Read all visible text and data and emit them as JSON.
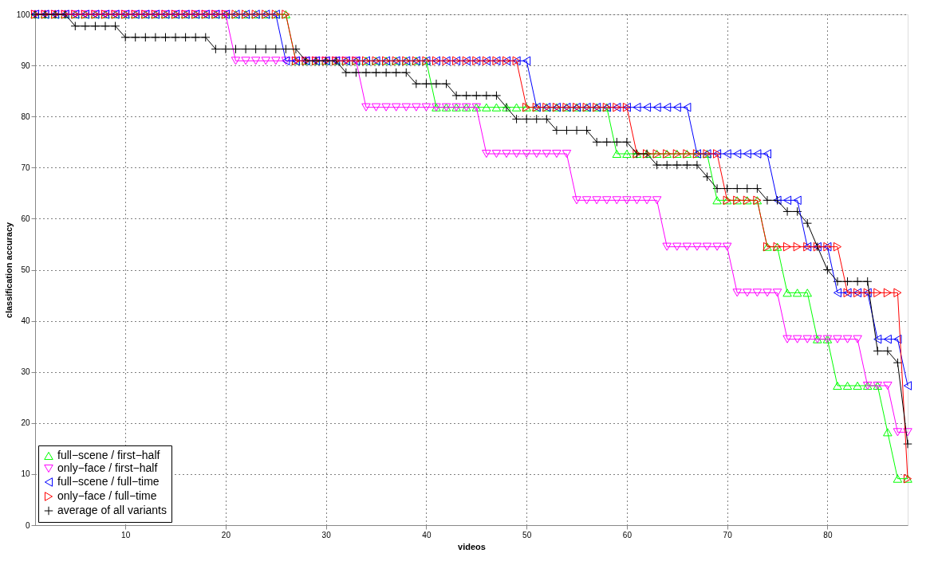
{
  "chart_data": {
    "type": "line",
    "xlabel": "videos",
    "ylabel": "classification accuracy",
    "x": [
      1,
      2,
      3,
      4,
      5,
      6,
      7,
      8,
      9,
      10,
      11,
      12,
      13,
      14,
      15,
      16,
      17,
      18,
      19,
      20,
      21,
      22,
      23,
      24,
      25,
      26,
      27,
      28,
      29,
      30,
      31,
      32,
      33,
      34,
      35,
      36,
      37,
      38,
      39,
      40,
      41,
      42,
      43,
      44,
      45,
      46,
      47,
      48,
      49,
      50,
      51,
      52,
      53,
      54,
      55,
      56,
      57,
      58,
      59,
      60,
      61,
      62,
      63,
      64,
      65,
      66,
      67,
      68,
      69,
      70,
      71,
      72,
      73,
      74,
      75,
      76,
      77,
      78,
      79,
      80,
      81,
      82,
      83,
      84,
      85,
      86,
      87,
      88
    ],
    "xlim": [
      1,
      88
    ],
    "xticks": [
      10,
      20,
      30,
      40,
      50,
      60,
      70,
      80
    ],
    "ylim": [
      0,
      100
    ],
    "yticks": [
      0,
      10,
      20,
      30,
      40,
      50,
      60,
      70,
      80,
      90,
      100
    ],
    "grid": true,
    "legend": "bottom left",
    "line_style": "solid",
    "series": [
      {
        "name": "full−scene / first−half",
        "color": "#00ff00",
        "marker": "triangle-up",
        "values": [
          100,
          100,
          100,
          100,
          100,
          100,
          100,
          100,
          100,
          100,
          100,
          100,
          100,
          100,
          100,
          100,
          100,
          100,
          100,
          100,
          100,
          100,
          100,
          100,
          100,
          100,
          90.9,
          90.9,
          90.9,
          90.9,
          90.9,
          90.9,
          90.9,
          90.9,
          90.9,
          90.9,
          90.9,
          90.9,
          90.9,
          90.9,
          81.8,
          81.8,
          81.8,
          81.8,
          81.8,
          81.8,
          81.8,
          81.8,
          81.8,
          81.8,
          81.8,
          81.8,
          81.8,
          81.8,
          81.8,
          81.8,
          81.8,
          81.8,
          72.7,
          72.7,
          72.7,
          72.7,
          72.7,
          72.7,
          72.7,
          72.7,
          72.7,
          72.7,
          63.6,
          63.6,
          63.6,
          63.6,
          63.6,
          54.5,
          54.5,
          45.5,
          45.5,
          45.5,
          36.4,
          36.4,
          27.3,
          27.3,
          27.3,
          27.3,
          27.3,
          18.2,
          9.1,
          9.1
        ]
      },
      {
        "name": "only−face / first−half",
        "color": "#ff00ff",
        "marker": "triangle-down",
        "values": [
          100,
          100,
          100,
          100,
          100,
          100,
          100,
          100,
          100,
          100,
          100,
          100,
          100,
          100,
          100,
          100,
          100,
          100,
          100,
          100,
          90.9,
          90.9,
          90.9,
          90.9,
          90.9,
          90.9,
          90.9,
          90.9,
          90.9,
          90.9,
          90.9,
          90.9,
          90.9,
          81.8,
          81.8,
          81.8,
          81.8,
          81.8,
          81.8,
          81.8,
          81.8,
          81.8,
          81.8,
          81.8,
          81.8,
          72.7,
          72.7,
          72.7,
          72.7,
          72.7,
          72.7,
          72.7,
          72.7,
          72.7,
          63.6,
          63.6,
          63.6,
          63.6,
          63.6,
          63.6,
          63.6,
          63.6,
          63.6,
          54.5,
          54.5,
          54.5,
          54.5,
          54.5,
          54.5,
          54.5,
          45.5,
          45.5,
          45.5,
          45.5,
          45.5,
          36.4,
          36.4,
          36.4,
          36.4,
          36.4,
          36.4,
          36.4,
          36.4,
          27.3,
          27.3,
          27.3,
          18.2,
          18.2
        ]
      },
      {
        "name": "full−scene / full−time",
        "color": "#0000ff",
        "marker": "triangle-left",
        "values": [
          100,
          100,
          100,
          100,
          100,
          100,
          100,
          100,
          100,
          100,
          100,
          100,
          100,
          100,
          100,
          100,
          100,
          100,
          100,
          100,
          100,
          100,
          100,
          100,
          100,
          90.9,
          90.9,
          90.9,
          90.9,
          90.9,
          90.9,
          90.9,
          90.9,
          90.9,
          90.9,
          90.9,
          90.9,
          90.9,
          90.9,
          90.9,
          90.9,
          90.9,
          90.9,
          90.9,
          90.9,
          90.9,
          90.9,
          90.9,
          90.9,
          90.9,
          81.8,
          81.8,
          81.8,
          81.8,
          81.8,
          81.8,
          81.8,
          81.8,
          81.8,
          81.8,
          81.8,
          81.8,
          81.8,
          81.8,
          81.8,
          81.8,
          72.7,
          72.7,
          72.7,
          72.7,
          72.7,
          72.7,
          72.7,
          72.7,
          63.6,
          63.6,
          63.6,
          54.5,
          54.5,
          54.5,
          45.5,
          45.5,
          45.5,
          45.5,
          36.4,
          36.4,
          36.4,
          27.3
        ]
      },
      {
        "name": "only−face / full−time",
        "color": "#ff0000",
        "marker": "triangle-right",
        "values": [
          100,
          100,
          100,
          100,
          100,
          100,
          100,
          100,
          100,
          100,
          100,
          100,
          100,
          100,
          100,
          100,
          100,
          100,
          100,
          100,
          100,
          100,
          100,
          100,
          100,
          100,
          90.9,
          90.9,
          90.9,
          90.9,
          90.9,
          90.9,
          90.9,
          90.9,
          90.9,
          90.9,
          90.9,
          90.9,
          90.9,
          90.9,
          90.9,
          90.9,
          90.9,
          90.9,
          90.9,
          90.9,
          90.9,
          90.9,
          90.9,
          81.8,
          81.8,
          81.8,
          81.8,
          81.8,
          81.8,
          81.8,
          81.8,
          81.8,
          81.8,
          81.8,
          72.7,
          72.7,
          72.7,
          72.7,
          72.7,
          72.7,
          72.7,
          72.7,
          72.7,
          63.6,
          63.6,
          63.6,
          63.6,
          54.5,
          54.5,
          54.5,
          54.5,
          54.5,
          54.5,
          54.5,
          54.5,
          45.5,
          45.5,
          45.5,
          45.5,
          45.5,
          45.5,
          9.1
        ]
      },
      {
        "name": "average of all variants",
        "color": "#000000",
        "marker": "cross",
        "values": [
          100,
          100,
          100,
          100,
          97.7,
          97.7,
          97.7,
          97.7,
          97.7,
          95.5,
          95.5,
          95.5,
          95.5,
          95.5,
          95.5,
          95.5,
          95.5,
          95.5,
          93.2,
          93.2,
          93.2,
          93.2,
          93.2,
          93.2,
          93.2,
          93.2,
          93.2,
          90.9,
          90.9,
          90.9,
          90.9,
          88.6,
          88.6,
          88.6,
          88.6,
          88.6,
          88.6,
          88.6,
          86.4,
          86.4,
          86.4,
          86.4,
          84.1,
          84.1,
          84.1,
          84.1,
          84.1,
          81.8,
          79.5,
          79.5,
          79.5,
          79.5,
          77.3,
          77.3,
          77.3,
          77.3,
          75.0,
          75.0,
          75.0,
          75.0,
          72.7,
          72.7,
          70.5,
          70.5,
          70.5,
          70.5,
          70.5,
          68.2,
          65.9,
          65.9,
          65.9,
          65.9,
          65.9,
          63.6,
          63.6,
          61.4,
          61.4,
          59.1,
          54.5,
          50.0,
          47.7,
          47.7,
          47.7,
          47.7,
          34.1,
          34.1,
          31.8,
          15.9
        ]
      }
    ]
  }
}
